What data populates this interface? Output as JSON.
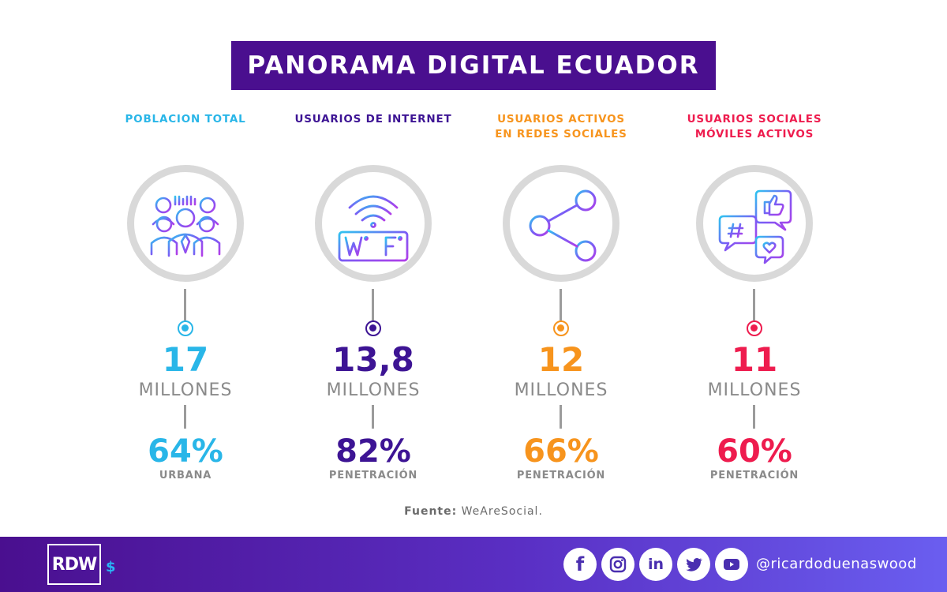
{
  "title": "PANORAMA DIGITAL ECUADOR",
  "colors": {
    "title_bg": "#4a0f8f",
    "cyan": "#29b6e8",
    "purple": "#3d1494",
    "orange": "#f7941d",
    "red": "#ee1c4e",
    "gray": "#8a8a8a"
  },
  "stats": [
    {
      "label": "POBLACION TOTAL",
      "icon": "people-group-icon",
      "value": "17",
      "unit": "MILLONES",
      "percent": "64%",
      "percent_label": "URBANA",
      "color": "#29b6e8"
    },
    {
      "label": "USUARIOS DE INTERNET",
      "icon": "wifi-icon",
      "value": "13,8",
      "unit": "MILLONES",
      "percent": "82%",
      "percent_label": "PENETRACIÓN",
      "color": "#3d1494"
    },
    {
      "label": "USUARIOS ACTIVOS\nEN REDES SOCIALES",
      "icon": "share-icon",
      "value": "12",
      "unit": "MILLONES",
      "percent": "66%",
      "percent_label": "PENETRACIÓN",
      "color": "#f7941d"
    },
    {
      "label": "USUARIOS SOCIALES\nMÓVILES ACTIVOS",
      "icon": "social-chat-icon",
      "value": "11",
      "unit": "MILLONES",
      "percent": "60%",
      "percent_label": "PENETRACIÓN",
      "color": "#ee1c4e"
    }
  ],
  "source": {
    "prefix": "Fuente:",
    "name": "WeAreSocial."
  },
  "footer": {
    "logo_text": "RDW",
    "logo_symbol": "$",
    "social_icons": [
      "facebook-icon",
      "instagram-icon",
      "linkedin-icon",
      "twitter-icon",
      "youtube-icon"
    ],
    "social_text": {
      "facebook": "f",
      "linkedin": "in"
    },
    "handle": "@ricardoduenaswood"
  }
}
